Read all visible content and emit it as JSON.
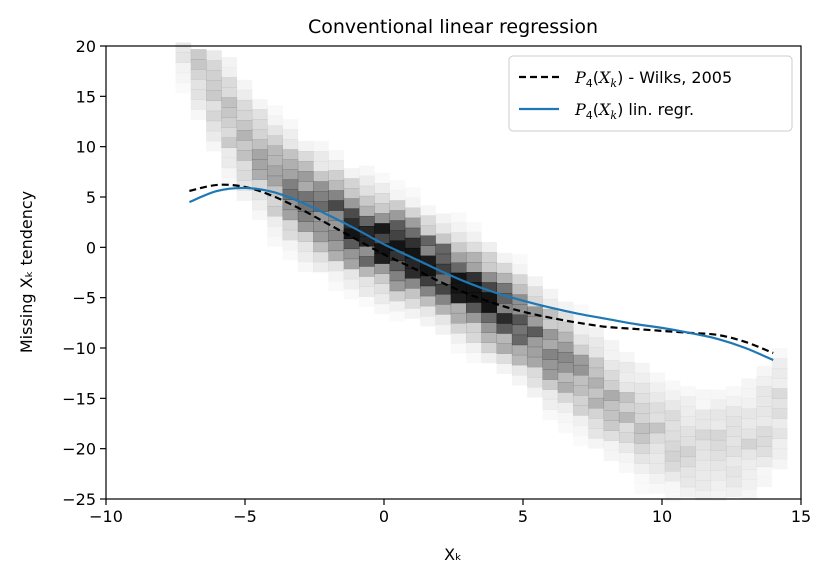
{
  "chart_data": {
    "type": "line",
    "title": "Conventional linear regression",
    "xlabel": "Xₖ",
    "ylabel": "Missing Xₖ tendency",
    "xlim": [
      -10,
      15
    ],
    "ylim": [
      -25,
      20
    ],
    "xticks": [
      -10,
      -5,
      0,
      5,
      10,
      15
    ],
    "yticks": [
      -25,
      -20,
      -15,
      -10,
      -5,
      0,
      5,
      10,
      15,
      20
    ],
    "xtick_labels": [
      "−10",
      "−5",
      "0",
      "5",
      "10",
      "15"
    ],
    "ytick_labels": [
      "−25",
      "−20",
      "−15",
      "−10",
      "−5",
      "0",
      "5",
      "10",
      "15",
      "20"
    ],
    "grid": false,
    "legend_position": "top-right",
    "background": "2D density histogram (grayscale) of data points, densest along the regression band",
    "series": [
      {
        "name": "P4(Xk) - Wilks, 2005",
        "label_parts": [
          "P",
          "4",
          "(X",
          "k",
          ") - Wilks, 2005"
        ],
        "color": "#000000",
        "style": "dashed",
        "x": [
          -7,
          -6,
          -5,
          -4,
          -3,
          -2,
          -1,
          0,
          1,
          2,
          3,
          4,
          5,
          6,
          7,
          8,
          9,
          10,
          11,
          12,
          13,
          14
        ],
        "y": [
          5.6,
          6.2,
          6.0,
          5.1,
          3.8,
          2.3,
          0.8,
          -0.7,
          -2.0,
          -3.4,
          -4.6,
          -5.6,
          -6.4,
          -7.0,
          -7.5,
          -7.9,
          -8.1,
          -8.3,
          -8.5,
          -8.7,
          -9.4,
          -10.5
        ]
      },
      {
        "name": "P4(Xk) lin. regr.",
        "label_parts": [
          "P",
          "4",
          "(X",
          "k",
          ") lin. regr."
        ],
        "color": "#1f77b4",
        "style": "solid",
        "x": [
          -7,
          -6,
          -5,
          -4,
          -3,
          -2,
          -1,
          0,
          1,
          2,
          3,
          4,
          5,
          6,
          7,
          8,
          9,
          10,
          11,
          12,
          13,
          14
        ],
        "y": [
          4.5,
          5.6,
          5.9,
          5.5,
          4.5,
          3.2,
          1.8,
          0.3,
          -1.0,
          -2.3,
          -3.5,
          -4.5,
          -5.3,
          -6.0,
          -6.6,
          -7.1,
          -7.6,
          -8.0,
          -8.5,
          -9.1,
          -10.0,
          -11.2
        ]
      }
    ]
  }
}
